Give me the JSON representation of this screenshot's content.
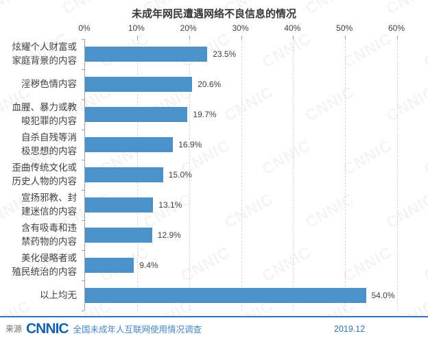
{
  "title": "未成年网民遭遇网络不良信息的情况",
  "chart_data": {
    "type": "bar",
    "orientation": "horizontal",
    "title": "未成年网民遭遇网络不良信息的情况",
    "categories": [
      "炫耀个人财富或\n家庭背景的内容",
      "淫秽色情内容",
      "血腥、暴力或教\n唆犯罪的内容",
      "自杀自残等消\n极思想的内容",
      "歪曲传统文化或\n历史人物的内容",
      "宣扬邪教、封\n建迷信的内容",
      "含有吸毒和违\n禁药物的内容",
      "美化侵略者或\n殖民统治的内容",
      "以上均无"
    ],
    "values": [
      23.5,
      20.6,
      19.7,
      16.9,
      15.0,
      13.1,
      12.9,
      9.4,
      54.0
    ],
    "data_labels": [
      "23.5%",
      "20.6%",
      "19.7%",
      "16.9%",
      "15.0%",
      "13.1%",
      "12.9%",
      "9.4%",
      "54.0%"
    ],
    "axis_tick_labels": [
      "0%",
      "10%",
      "20%",
      "30%",
      "40%",
      "50%",
      "60%"
    ],
    "xlim": [
      0,
      60
    ],
    "xlabel": "",
    "ylabel": "",
    "grid": "vertical-dashed",
    "legend": "none",
    "bar_color": "#4d91c9"
  },
  "colors": {
    "bar": "#4d91c9",
    "gridline": "#d8d8d8",
    "axis": "#9e9e9e",
    "text": "#404040",
    "footer_line": "#2e74b5",
    "logo_blue": "#1463ae",
    "survey_blue": "#4585c7"
  },
  "watermark": {
    "text": "CNNIC"
  },
  "footer": {
    "source_label": "来源",
    "logo_text": "CNNIC",
    "survey_title": "全国未成年人互联网使用情况调查",
    "report_date": "2019.12"
  }
}
